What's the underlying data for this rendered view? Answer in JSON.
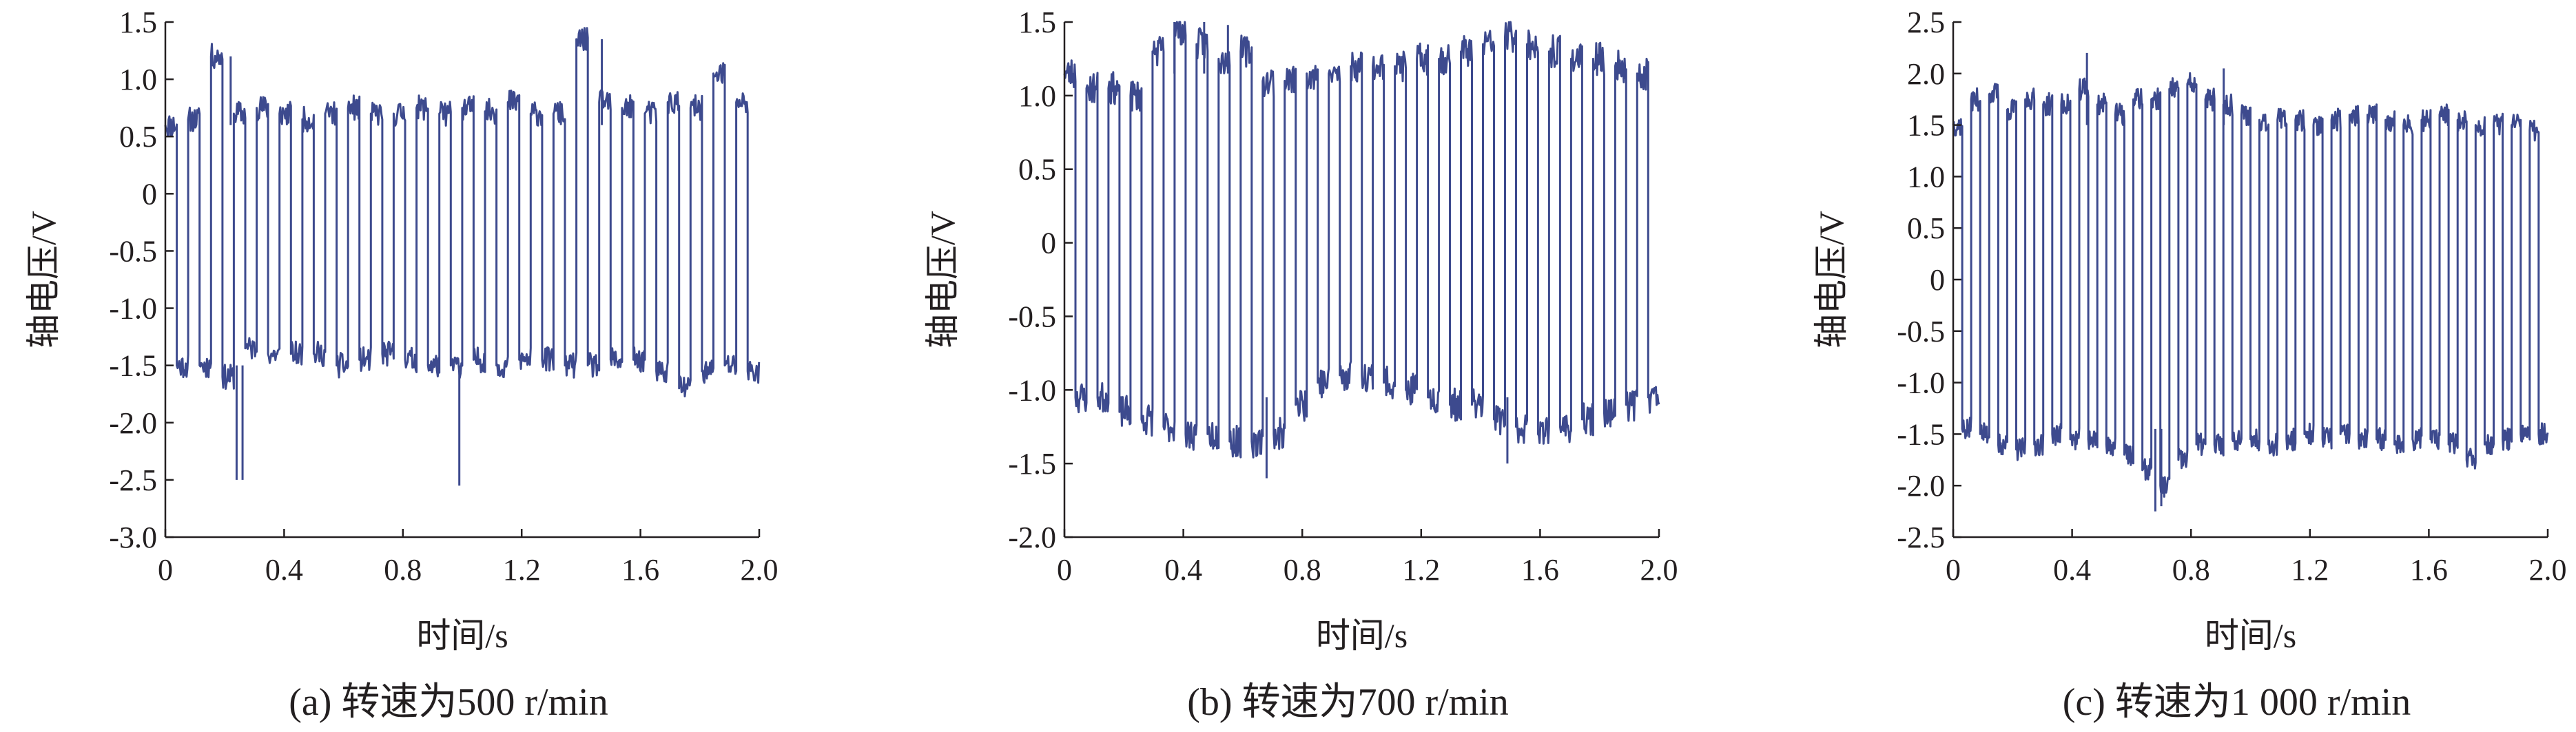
{
  "chart_data": [
    {
      "type": "line",
      "panel_label": "(a) 转速为500 r/min",
      "xlabel": "时间/s",
      "ylabel": "轴电压/V",
      "xlim": [
        0,
        2.0
      ],
      "ylim": [
        -3.0,
        1.5
      ],
      "x_ticks": [
        "0",
        "0.4",
        "0.8",
        "1.2",
        "1.6",
        "2.0"
      ],
      "y_ticks": [
        "1.5",
        "1.0",
        "0.5",
        "0",
        "-0.5",
        "-1.0",
        "-1.5",
        "-2.0",
        "-2.5",
        "-3.0"
      ],
      "grid": false,
      "line_color": "#3d4a8e",
      "series": [
        {
          "duration_s": 2.0,
          "period_s": 0.0769,
          "duty_high": 0.5,
          "high_levels_v": [
            0.6,
            0.65,
            1.2,
            0.7,
            0.75,
            0.7,
            0.65,
            0.7,
            0.75,
            0.7,
            0.7,
            0.75,
            0.7,
            0.75,
            0.72,
            0.8,
            0.7,
            0.7,
            1.35,
            0.8,
            0.75,
            0.7,
            0.8,
            0.75,
            1.05,
            0.8
          ],
          "low_levels_v": [
            -1.5,
            -1.5,
            -1.6,
            -1.35,
            -1.4,
            -1.4,
            -1.4,
            -1.5,
            -1.45,
            -1.4,
            -1.45,
            -1.5,
            -1.5,
            -1.45,
            -1.5,
            -1.45,
            -1.45,
            -1.5,
            -1.5,
            -1.45,
            -1.45,
            -1.55,
            -1.7,
            -1.55,
            -1.5,
            -1.55
          ],
          "spikes": [
            [
              0.24,
              -2.5
            ],
            [
              0.26,
              -2.5
            ],
            [
              0.99,
              -2.55
            ],
            [
              0.22,
              1.2
            ],
            [
              1.47,
              1.35
            ]
          ]
        }
      ]
    },
    {
      "type": "line",
      "panel_label": "(b) 转速为700 r/min",
      "xlabel": "时间/s",
      "ylabel": "轴电压/V",
      "xlim": [
        0,
        2.0
      ],
      "ylim": [
        -2.0,
        1.5
      ],
      "x_ticks": [
        "0",
        "0.4",
        "0.8",
        "1.2",
        "1.6",
        "2.0"
      ],
      "y_ticks": [
        "1.5",
        "1.0",
        "0.5",
        "0",
        "-0.5",
        "-1.0",
        "-1.5",
        "-2.0"
      ],
      "grid": false,
      "line_color": "#3d4a8e",
      "series": [
        {
          "duration_s": 2.0,
          "period_s": 0.0741,
          "duty_high": 0.5,
          "high_levels_v": [
            1.15,
            1.05,
            1.05,
            1.0,
            1.3,
            1.45,
            1.35,
            1.25,
            1.3,
            1.1,
            1.1,
            1.15,
            1.15,
            1.2,
            1.2,
            1.2,
            1.25,
            1.25,
            1.3,
            1.35,
            1.4,
            1.35,
            1.3,
            1.25,
            1.25,
            1.2,
            1.15
          ],
          "low_levels_v": [
            -1.05,
            -1.05,
            -1.15,
            -1.2,
            -1.25,
            -1.3,
            -1.3,
            -1.35,
            -1.35,
            -1.3,
            -1.1,
            -0.95,
            -0.9,
            -0.9,
            -0.95,
            -1.0,
            -1.05,
            -1.1,
            -1.1,
            -1.2,
            -1.25,
            -1.3,
            -1.25,
            -1.2,
            -1.15,
            -1.1,
            -1.05
          ],
          "spikes": [
            [
              0.37,
              1.5
            ],
            [
              0.47,
              1.5
            ],
            [
              0.55,
              1.48
            ],
            [
              0.68,
              -1.6
            ],
            [
              1.49,
              -1.5
            ]
          ]
        }
      ]
    },
    {
      "type": "line",
      "panel_label": "(c) 转速为1 000 r/min",
      "xlabel": "时间/s",
      "ylabel": "轴电压/V",
      "xlim": [
        0,
        2.0
      ],
      "ylim": [
        -2.5,
        2.5
      ],
      "x_ticks": [
        "0",
        "0.4",
        "0.8",
        "1.2",
        "1.6",
        "2.0"
      ],
      "y_ticks": [
        "2.5",
        "2.0",
        "1.5",
        "1.0",
        "0.5",
        "0",
        "-0.5",
        "-1.0",
        "-1.5",
        "-2.0",
        "-2.5"
      ],
      "grid": false,
      "line_color": "#3d4a8e",
      "series": [
        {
          "duration_s": 2.0,
          "period_s": 0.0606,
          "duty_high": 0.5,
          "high_levels_v": [
            1.5,
            1.75,
            1.8,
            1.65,
            1.75,
            1.7,
            1.7,
            1.85,
            1.7,
            1.6,
            1.75,
            1.75,
            1.85,
            1.9,
            1.75,
            1.7,
            1.6,
            1.55,
            1.55,
            1.55,
            1.5,
            1.55,
            1.6,
            1.6,
            1.55,
            1.5,
            1.55,
            1.6,
            1.55,
            1.5,
            1.5,
            1.5,
            1.45
          ],
          "low_levels_v": [
            -1.45,
            -1.5,
            -1.6,
            -1.65,
            -1.6,
            -1.5,
            -1.55,
            -1.55,
            -1.6,
            -1.7,
            -1.85,
            -2.0,
            -1.75,
            -1.6,
            -1.6,
            -1.55,
            -1.55,
            -1.6,
            -1.55,
            -1.5,
            -1.55,
            -1.5,
            -1.55,
            -1.55,
            -1.6,
            -1.55,
            -1.55,
            -1.6,
            -1.75,
            -1.6,
            -1.55,
            -1.5,
            -1.5
          ],
          "spikes": [
            [
              0.45,
              2.2
            ],
            [
              0.68,
              -2.25
            ],
            [
              0.7,
              -2.2
            ],
            [
              0.91,
              2.05
            ]
          ]
        }
      ]
    }
  ]
}
